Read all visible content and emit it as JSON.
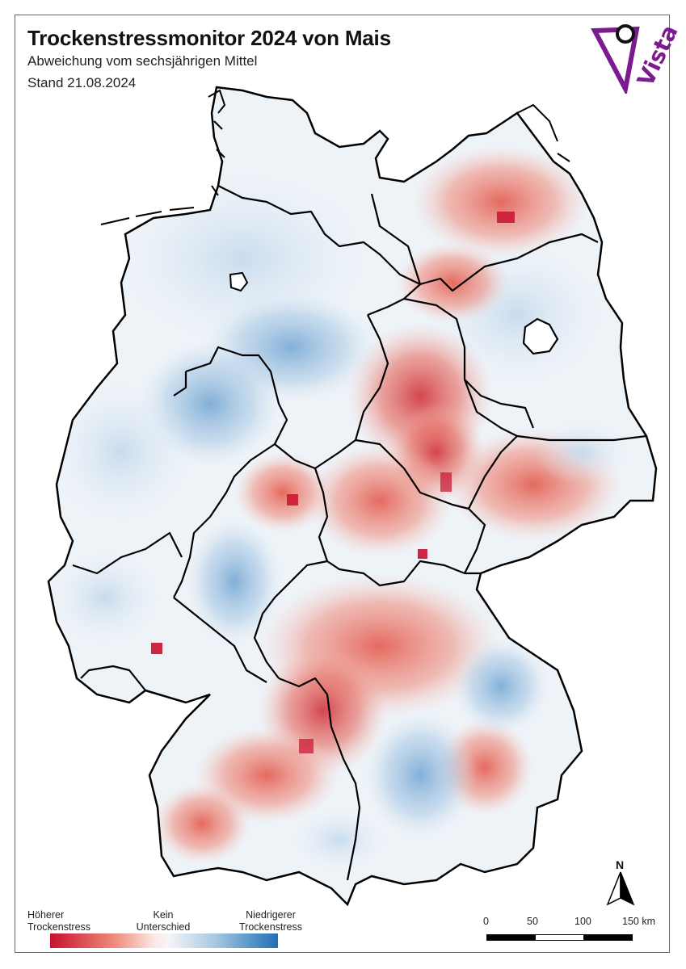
{
  "map": {
    "title": "Trockenstressmonitor 2024 von Mais",
    "subtitle": "Abweichung vom sechsjährigen Mittel",
    "date": "Stand 21.08.2024",
    "logo_text": "Vista",
    "legend": {
      "left_label": "Höherer\nTrockenstress",
      "center_label": "Kein\nUnterschied",
      "right_label": "Niedrigerer\nTrockenstress",
      "colors": [
        "#c8102e",
        "#ef8a7a",
        "#f5f5f7",
        "#a9c9e4",
        "#1f6fb4"
      ]
    },
    "scale_bar": {
      "ticks": [
        "0",
        "50",
        "100",
        "150 km"
      ]
    },
    "north_arrow": "N"
  }
}
